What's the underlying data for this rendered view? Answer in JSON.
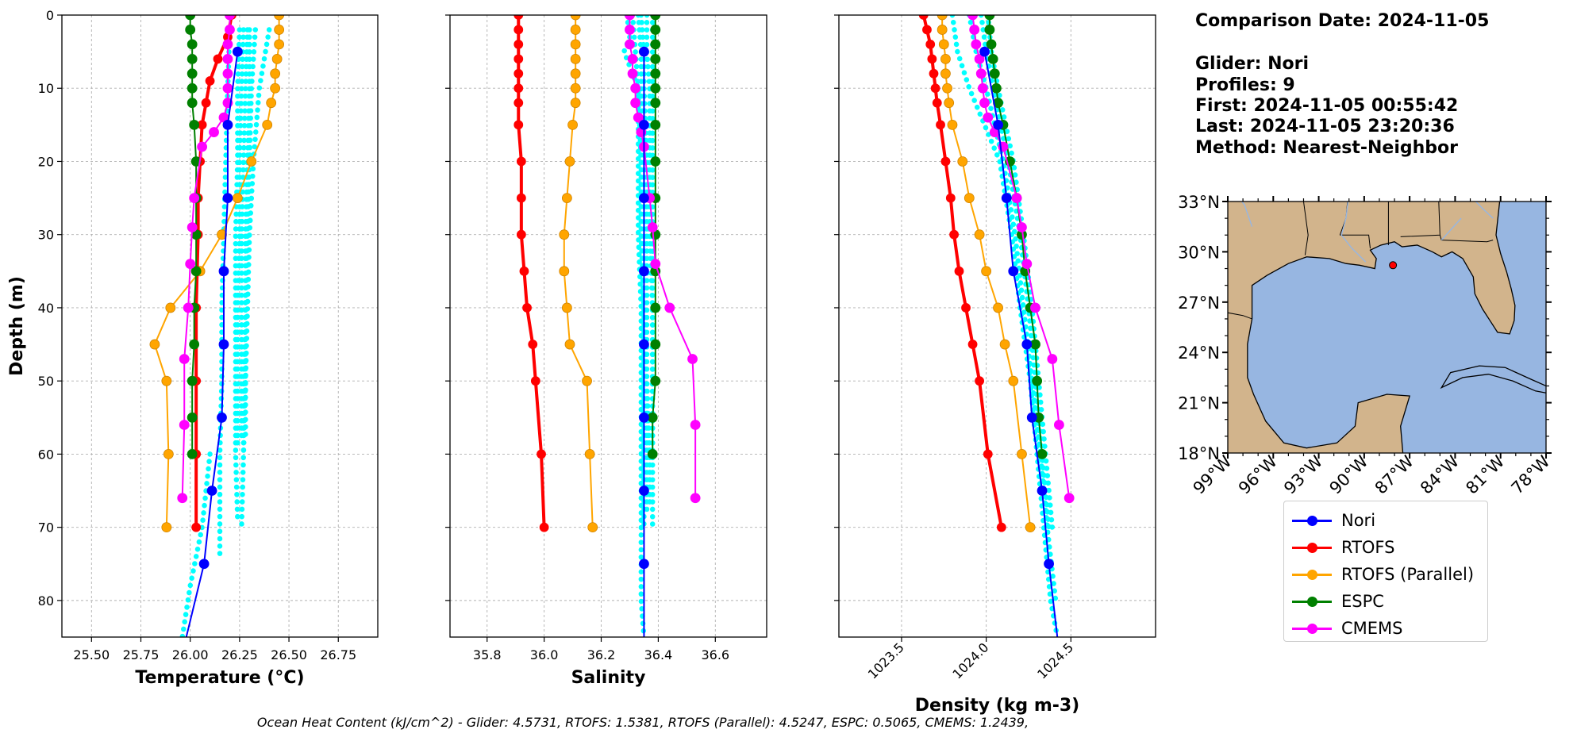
{
  "info": {
    "comparison_date": "Comparison Date: 2024-11-05",
    "glider": "Glider: Nori",
    "profiles": "Profiles: 9",
    "first": "First: 2024-11-05 00:55:42",
    "last": "Last: 2024-11-05 23:20:36",
    "method": "Method: Nearest-Neighbor"
  },
  "footer": "Ocean Heat Content (kJ/cm^2) - Glider: 4.5731,  RTOFS: 1.5381,  RTOFS (Parallel): 4.5247,  ESPC: 0.5065,  CMEMS: 1.2439,",
  "legend": [
    {
      "name": "Nori",
      "color": "#0000ff"
    },
    {
      "name": "RTOFS",
      "color": "#ff0000"
    },
    {
      "name": "RTOFS (Parallel)",
      "color": "#ffa500"
    },
    {
      "name": "ESPC",
      "color": "#008000"
    },
    {
      "name": "CMEMS",
      "color": "#ff00ff"
    }
  ],
  "colors": {
    "glider_profiles": "#00ffff",
    "grid": "#b0b0b0",
    "land": "#d2b48c",
    "ocean": "#97b6e1",
    "glider_marker": "#ff0000"
  },
  "chart_data": [
    {
      "type": "line",
      "xlabel": "Temperature (°C)",
      "ylabel": "Depth (m)",
      "xlim": [
        25.35,
        26.95
      ],
      "ylim": [
        85,
        0
      ],
      "xticks": [
        "25.50",
        "25.75",
        "26.00",
        "26.25",
        "26.50",
        "26.75"
      ],
      "yticks": [
        "0",
        "10",
        "20",
        "30",
        "40",
        "50",
        "60",
        "70",
        "80"
      ],
      "grid": true,
      "glider_profiles": [
        {
          "depth": [
            2,
            10,
            20,
            30,
            40,
            50,
            60,
            70,
            74
          ],
          "values": [
            26.2,
            26.19,
            26.18,
            26.17,
            26.16,
            26.16,
            26.15,
            26.15,
            26.15
          ]
        },
        {
          "depth": [
            2,
            10,
            20,
            30,
            40,
            50,
            60,
            69
          ],
          "values": [
            26.25,
            26.24,
            26.24,
            26.23,
            26.23,
            26.23,
            26.23,
            26.24
          ]
        },
        {
          "depth": [
            2,
            10,
            20,
            30,
            40,
            50,
            59
          ],
          "values": [
            26.27,
            26.26,
            26.25,
            26.25,
            26.24,
            26.24,
            26.24
          ]
        },
        {
          "depth": [
            2,
            10,
            20,
            30,
            40,
            50,
            58
          ],
          "values": [
            26.29,
            26.28,
            26.27,
            26.26,
            26.26,
            26.26,
            26.26
          ]
        },
        {
          "depth": [
            2,
            10,
            20,
            30,
            40,
            50,
            60,
            70
          ],
          "values": [
            26.3,
            26.3,
            26.29,
            26.28,
            26.28,
            26.27,
            26.27,
            26.26
          ]
        },
        {
          "depth": [
            2,
            10,
            20,
            30,
            40,
            50,
            60
          ],
          "values": [
            26.33,
            26.31,
            26.3,
            26.29,
            26.28,
            26.28,
            26.27
          ]
        },
        {
          "depth": [
            2,
            10,
            20,
            30,
            40,
            50,
            58
          ],
          "values": [
            26.4,
            26.35,
            26.32,
            26.3,
            26.29,
            26.28,
            26.28
          ]
        },
        {
          "depth": [
            60,
            70,
            78,
            85
          ],
          "values": [
            26.1,
            26.06,
            26.0,
            25.96
          ]
        }
      ],
      "series": [
        {
          "name": "Nori",
          "depth": [
            5,
            15,
            25,
            35,
            45,
            55,
            65,
            75,
            85
          ],
          "values": [
            26.24,
            26.19,
            26.19,
            26.17,
            26.17,
            26.16,
            26.11,
            26.07,
            25.98
          ],
          "marker_every": [
            0,
            1,
            2,
            3,
            4,
            5,
            6,
            7
          ]
        },
        {
          "name": "RTOFS",
          "depth": [
            0,
            3,
            6,
            9,
            12,
            15,
            20,
            25,
            30,
            40,
            50,
            60,
            70
          ],
          "values": [
            26.21,
            26.19,
            26.14,
            26.1,
            26.08,
            26.06,
            26.05,
            26.04,
            26.04,
            26.03,
            26.03,
            26.03,
            26.03
          ]
        },
        {
          "name": "RTOFS (Parallel)",
          "depth": [
            0,
            2,
            4,
            6,
            8,
            10,
            12,
            15,
            20,
            25,
            30,
            35,
            40,
            45,
            50,
            60,
            70
          ],
          "values": [
            26.45,
            26.45,
            26.45,
            26.44,
            26.43,
            26.43,
            26.41,
            26.39,
            26.31,
            26.24,
            26.16,
            26.05,
            25.9,
            25.82,
            25.88,
            25.89,
            25.88
          ]
        },
        {
          "name": "ESPC",
          "depth": [
            0,
            2,
            4,
            6,
            8,
            10,
            12,
            15,
            20,
            25,
            30,
            35,
            40,
            45,
            50,
            55,
            60
          ],
          "values": [
            26.0,
            26.0,
            26.01,
            26.01,
            26.01,
            26.01,
            26.01,
            26.02,
            26.03,
            26.03,
            26.03,
            26.03,
            26.02,
            26.02,
            26.01,
            26.01,
            26.01
          ]
        },
        {
          "name": "CMEMS",
          "depth": [
            0,
            2,
            4,
            6,
            8,
            10,
            12,
            14,
            16,
            18,
            25,
            29,
            34,
            40,
            47,
            56,
            66
          ],
          "values": [
            26.2,
            26.2,
            26.19,
            26.19,
            26.19,
            26.19,
            26.19,
            26.17,
            26.12,
            26.06,
            26.02,
            26.01,
            26.0,
            25.99,
            25.97,
            25.97,
            25.96
          ]
        }
      ]
    },
    {
      "type": "line",
      "xlabel": "Salinity",
      "ylabel": "",
      "xlim": [
        35.67,
        36.78
      ],
      "ylim": [
        85,
        0
      ],
      "xticks": [
        "35.8",
        "36.0",
        "36.2",
        "36.4",
        "36.6"
      ],
      "yticks": [],
      "grid": true,
      "glider_profiles": [
        {
          "depth": [
            0,
            3,
            5,
            10,
            20,
            30,
            40,
            50,
            60,
            70,
            80,
            85
          ],
          "values": [
            36.29,
            36.3,
            36.28,
            36.33,
            36.33,
            36.33,
            36.34,
            36.34,
            36.34,
            36.34,
            36.34,
            36.35
          ]
        },
        {
          "depth": [
            0,
            5,
            10,
            20,
            30,
            40,
            50,
            60,
            70
          ],
          "values": [
            36.31,
            36.32,
            36.33,
            36.34,
            36.34,
            36.35,
            36.35,
            36.35,
            36.35
          ]
        },
        {
          "depth": [
            0,
            5,
            10,
            20,
            30,
            40,
            50,
            60,
            68
          ],
          "values": [
            36.33,
            36.34,
            36.34,
            36.35,
            36.35,
            36.35,
            36.36,
            36.36,
            36.36
          ]
        },
        {
          "depth": [
            0,
            5,
            10,
            20,
            30,
            40,
            50,
            60,
            67
          ],
          "values": [
            36.34,
            36.35,
            36.35,
            36.36,
            36.36,
            36.36,
            36.36,
            36.37,
            36.37
          ]
        },
        {
          "depth": [
            0,
            5,
            10,
            20,
            30,
            40,
            50,
            60,
            70
          ],
          "values": [
            36.36,
            36.36,
            36.37,
            36.37,
            36.37,
            36.38,
            36.38,
            36.38,
            36.38
          ]
        },
        {
          "depth": [
            0,
            5,
            10,
            20,
            30,
            40,
            50,
            59
          ],
          "values": [
            36.38,
            36.38,
            36.38,
            36.38,
            36.38,
            36.38,
            36.38,
            36.38
          ]
        }
      ],
      "series": [
        {
          "name": "Nori",
          "depth": [
            5,
            15,
            25,
            35,
            45,
            55,
            65,
            75,
            85
          ],
          "values": [
            36.35,
            36.35,
            36.35,
            36.35,
            36.35,
            36.35,
            36.35,
            36.35,
            36.35
          ]
        },
        {
          "name": "RTOFS",
          "depth": [
            0,
            2,
            4,
            6,
            8,
            10,
            12,
            15,
            20,
            25,
            30,
            35,
            40,
            45,
            50,
            60,
            70
          ],
          "values": [
            35.91,
            35.91,
            35.91,
            35.91,
            35.91,
            35.91,
            35.91,
            35.91,
            35.92,
            35.92,
            35.92,
            35.93,
            35.94,
            35.96,
            35.97,
            35.99,
            36.0
          ]
        },
        {
          "name": "RTOFS (Parallel)",
          "depth": [
            0,
            2,
            4,
            6,
            8,
            10,
            12,
            15,
            20,
            25,
            30,
            35,
            40,
            45,
            50,
            60,
            70
          ],
          "values": [
            36.11,
            36.11,
            36.11,
            36.11,
            36.11,
            36.11,
            36.11,
            36.1,
            36.09,
            36.08,
            36.07,
            36.07,
            36.08,
            36.09,
            36.15,
            36.16,
            36.17
          ]
        },
        {
          "name": "ESPC",
          "depth": [
            0,
            2,
            4,
            6,
            8,
            10,
            12,
            15,
            20,
            25,
            30,
            35,
            40,
            45,
            50,
            55,
            60
          ],
          "values": [
            36.39,
            36.39,
            36.39,
            36.39,
            36.39,
            36.39,
            36.39,
            36.39,
            36.39,
            36.39,
            36.39,
            36.39,
            36.39,
            36.39,
            36.39,
            36.38,
            36.38
          ]
        },
        {
          "name": "CMEMS",
          "depth": [
            0,
            2,
            4,
            6,
            8,
            10,
            12,
            14,
            16,
            18,
            25,
            29,
            34,
            40,
            47,
            56,
            66
          ],
          "values": [
            36.3,
            36.3,
            36.3,
            36.31,
            36.31,
            36.32,
            36.32,
            36.33,
            36.34,
            36.35,
            36.37,
            36.38,
            36.39,
            36.44,
            36.52,
            36.53,
            36.53
          ]
        }
      ]
    },
    {
      "type": "line",
      "xlabel": "Density (kg m-3)",
      "ylabel": "",
      "xlim": [
        1023.13,
        1025.0
      ],
      "ylim": [
        85,
        0
      ],
      "xticks": [
        "1023.5",
        "1024.0",
        "1024.5"
      ],
      "yticks": [],
      "grid": true,
      "glider_profiles": [
        {
          "depth": [
            0,
            5,
            10,
            20,
            30,
            40,
            50,
            60,
            70,
            80,
            85
          ],
          "values": [
            1023.8,
            1023.83,
            1023.9,
            1024.08,
            1024.15,
            1024.2,
            1024.26,
            1024.3,
            1024.34,
            1024.38,
            1024.42
          ]
        },
        {
          "depth": [
            0,
            5,
            10,
            20,
            30,
            40,
            50,
            60,
            70,
            80
          ],
          "values": [
            1023.9,
            1023.94,
            1024.0,
            1024.1,
            1024.17,
            1024.22,
            1024.27,
            1024.32,
            1024.36,
            1024.41
          ]
        },
        {
          "depth": [
            0,
            5,
            10,
            20,
            30,
            40,
            50,
            60,
            70
          ],
          "values": [
            1023.97,
            1024.0,
            1024.04,
            1024.13,
            1024.2,
            1024.25,
            1024.29,
            1024.33,
            1024.37
          ]
        },
        {
          "depth": [
            0,
            5,
            10,
            20,
            30,
            40,
            50,
            60,
            70
          ],
          "values": [
            1024.01,
            1024.03,
            1024.07,
            1024.16,
            1024.22,
            1024.27,
            1024.31,
            1024.35,
            1024.39
          ]
        }
      ],
      "series": [
        {
          "name": "Nori",
          "depth": [
            5,
            15,
            25,
            35,
            45,
            55,
            65,
            75,
            85
          ],
          "values": [
            1023.99,
            1024.07,
            1024.12,
            1024.16,
            1024.24,
            1024.27,
            1024.33,
            1024.37,
            1024.42
          ]
        },
        {
          "name": "RTOFS",
          "depth": [
            0,
            2,
            4,
            6,
            8,
            10,
            12,
            15,
            20,
            25,
            30,
            35,
            40,
            45,
            50,
            60,
            70
          ],
          "values": [
            1023.63,
            1023.65,
            1023.67,
            1023.68,
            1023.69,
            1023.7,
            1023.71,
            1023.73,
            1023.76,
            1023.79,
            1023.81,
            1023.84,
            1023.88,
            1023.92,
            1023.96,
            1024.01,
            1024.09
          ]
        },
        {
          "name": "RTOFS (Parallel)",
          "depth": [
            0,
            2,
            4,
            6,
            8,
            10,
            12,
            15,
            20,
            25,
            30,
            35,
            40,
            45,
            50,
            60,
            70
          ],
          "values": [
            1023.74,
            1023.74,
            1023.75,
            1023.76,
            1023.76,
            1023.77,
            1023.78,
            1023.8,
            1023.86,
            1023.9,
            1023.96,
            1024.0,
            1024.07,
            1024.11,
            1024.16,
            1024.21,
            1024.26
          ]
        },
        {
          "name": "ESPC",
          "depth": [
            0,
            2,
            4,
            6,
            8,
            10,
            12,
            15,
            20,
            25,
            30,
            35,
            40,
            45,
            50,
            55,
            60
          ],
          "values": [
            1024.02,
            1024.02,
            1024.03,
            1024.04,
            1024.05,
            1024.06,
            1024.07,
            1024.1,
            1024.14,
            1024.18,
            1024.21,
            1024.23,
            1024.26,
            1024.29,
            1024.3,
            1024.31,
            1024.33
          ]
        },
        {
          "name": "CMEMS",
          "depth": [
            0,
            2,
            4,
            6,
            8,
            10,
            12,
            14,
            16,
            18,
            25,
            29,
            34,
            40,
            47,
            56,
            66
          ],
          "values": [
            1023.92,
            1023.93,
            1023.94,
            1023.96,
            1023.97,
            1023.98,
            1023.99,
            1024.01,
            1024.05,
            1024.1,
            1024.18,
            1024.21,
            1024.24,
            1024.29,
            1024.39,
            1024.43,
            1024.49
          ]
        }
      ]
    }
  ],
  "map": {
    "lat_ticks": [
      "33°N",
      "30°N",
      "27°N",
      "24°N",
      "21°N",
      "18°N"
    ],
    "lon_ticks": [
      "99°W",
      "96°W",
      "93°W",
      "90°W",
      "87°W",
      "84°W",
      "81°W",
      "78°W"
    ],
    "lon_range": [
      -99,
      -78
    ],
    "lat_range": [
      18,
      33
    ],
    "glider_position": {
      "lon": -88.1,
      "lat": 29.2
    }
  }
}
